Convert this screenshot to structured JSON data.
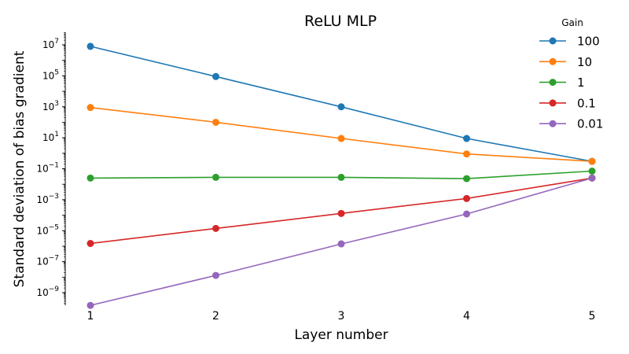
{
  "chart_data": {
    "type": "line",
    "title": "ReLU MLP",
    "xlabel": "Layer number",
    "ylabel": "Standard deviation of bias gradient",
    "x": [
      1,
      2,
      3,
      4,
      5
    ],
    "xticks": [
      "1",
      "2",
      "3",
      "4",
      "5"
    ],
    "yscale": "log",
    "ylim": [
      3e-11,
      50000000.0
    ],
    "yticks": [
      {
        "value": 10000000.0,
        "base": "10",
        "exp": "7"
      },
      {
        "value": 100000.0,
        "base": "10",
        "exp": "5"
      },
      {
        "value": 1000.0,
        "base": "10",
        "exp": "3"
      },
      {
        "value": 10.0,
        "base": "10",
        "exp": "1"
      },
      {
        "value": 0.1,
        "base": "10",
        "exp": "−1"
      },
      {
        "value": 0.001,
        "base": "10",
        "exp": "−3"
      },
      {
        "value": 1e-05,
        "base": "10",
        "exp": "−5"
      },
      {
        "value": 1e-07,
        "base": "10",
        "exp": "−7"
      },
      {
        "value": 1e-09,
        "base": "10",
        "exp": "−9"
      }
    ],
    "grid": false,
    "legend": {
      "title": "Gain",
      "placement": "top-right"
    },
    "series": [
      {
        "name": "100",
        "color": "#1f77b4",
        "values": [
          8000000.0,
          90000.0,
          1000.0,
          9,
          0.3
        ]
      },
      {
        "name": "10",
        "color": "#ff7f0e",
        "values": [
          900,
          100,
          9,
          0.9,
          0.3
        ]
      },
      {
        "name": "1",
        "color": "#2ca02c",
        "values": [
          0.025,
          0.028,
          0.028,
          0.023,
          0.07
        ]
      },
      {
        "name": "0.1",
        "color": "#d62728",
        "values": [
          1.5e-06,
          1.4e-05,
          0.00013,
          0.0012,
          0.025
        ]
      },
      {
        "name": "0.01",
        "color": "#9467bd",
        "values": [
          1.5e-10,
          1.3e-08,
          1.4e-06,
          0.00012,
          0.025
        ]
      }
    ]
  }
}
